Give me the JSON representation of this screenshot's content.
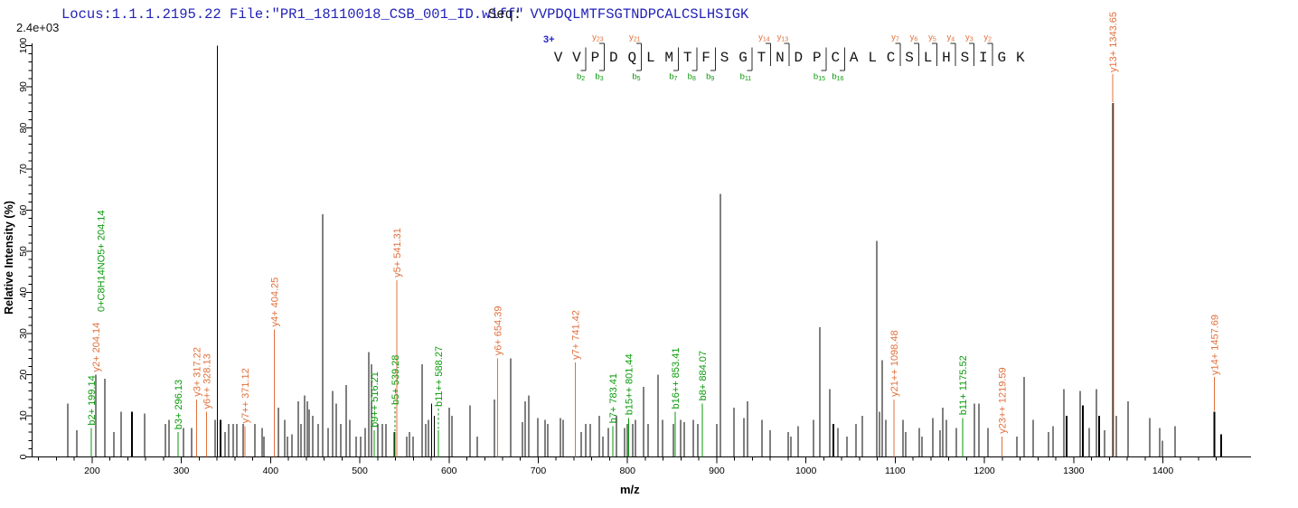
{
  "header": {
    "locus_line": "Locus:1.1.1.2195.22 File:\"PR1_18110018_CSB_001_ID.wiff\"",
    "seq_prefix": "Seq: ",
    "sequence": "VVPDQLMTFSGTNDPCALCSLHSIGK",
    "max_intensity_label": "2.4e+03"
  },
  "colors": {
    "background": "#ffffff",
    "header_blue": "#2222b8",
    "charge_blue": "#2222cc",
    "y_ion_orange": "#e0703c",
    "b_ion_green": "#0a9a0a",
    "peak_black": "#000000",
    "axis_black": "#000000",
    "residue_black": "#141414"
  },
  "peptide_ladder": {
    "charge_label": "3+",
    "residues": [
      "V",
      "V",
      "P",
      "D",
      "Q",
      "L",
      "M",
      "T",
      "F",
      "S",
      "G",
      "T",
      "N",
      "D",
      "P",
      "C",
      "A",
      "L",
      "C",
      "S",
      "L",
      "H",
      "S",
      "I",
      "G",
      "K"
    ],
    "b_ions": [
      2,
      3,
      5,
      7,
      8,
      9,
      11,
      15,
      16
    ],
    "y_ions": [
      23,
      21,
      14,
      13,
      7,
      6,
      5,
      4,
      3,
      2
    ]
  },
  "chart_data": {
    "type": "bar",
    "subtype": "msms-stick-spectrum",
    "title": "",
    "xlabel": "m/z",
    "ylabel": "Relative Intensity (%)",
    "base_peak_intensity": "2.4e+03",
    "x_axis": {
      "min": 130,
      "max": 1500,
      "major_ticks": [
        200,
        300,
        400,
        500,
        600,
        700,
        800,
        900,
        1000,
        1100,
        1200,
        1300,
        1400
      ],
      "minor_step": 20
    },
    "y_axis": {
      "min": 0,
      "max": 100,
      "major_ticks": [
        0,
        10,
        20,
        30,
        40,
        50,
        60,
        70,
        80,
        90,
        100
      ],
      "minor_step": 2
    },
    "legend": "color-coded: black=unassigned, orange=y ions, green=b ions",
    "peaks": [
      [
        172.7,
        13
      ],
      [
        182.8,
        6.5
      ],
      [
        199.14,
        7,
        2
      ],
      [
        204.14,
        20
      ],
      [
        214.2,
        19
      ],
      [
        224.4,
        6
      ],
      [
        232.5,
        11
      ],
      [
        244.6,
        11,
        0,
        2
      ],
      [
        258.8,
        10.5
      ],
      [
        282.1,
        8
      ],
      [
        286.2,
        9
      ],
      [
        296.13,
        6,
        2
      ],
      [
        302.4,
        7
      ],
      [
        311.5,
        7
      ],
      [
        317.22,
        14,
        1
      ],
      [
        328.13,
        11,
        1
      ],
      [
        337.9,
        9
      ],
      [
        340.4,
        100
      ],
      [
        344,
        9,
        0,
        2
      ],
      [
        349,
        6
      ],
      [
        353,
        8
      ],
      [
        358.1,
        8
      ],
      [
        362.1,
        8
      ],
      [
        369.2,
        8
      ],
      [
        371.12,
        7.5,
        1
      ],
      [
        382.4,
        8
      ],
      [
        390.5,
        7
      ],
      [
        392.5,
        5
      ],
      [
        404.25,
        31,
        1
      ],
      [
        408.7,
        12
      ],
      [
        415.8,
        9
      ],
      [
        418.8,
        5
      ],
      [
        423.9,
        5.5
      ],
      [
        431,
        13.5
      ],
      [
        434,
        8
      ],
      [
        438.2,
        15
      ],
      [
        441.2,
        13.5
      ],
      [
        443.2,
        11.5
      ],
      [
        447.2,
        10
      ],
      [
        453.3,
        8
      ],
      [
        458.3,
        59
      ],
      [
        464.4,
        7
      ],
      [
        469.5,
        16
      ],
      [
        473.5,
        13
      ],
      [
        478.6,
        8
      ],
      [
        484.7,
        17.5
      ],
      [
        488.7,
        9
      ],
      [
        495.8,
        5
      ],
      [
        500.9,
        5
      ],
      [
        506,
        7
      ],
      [
        510,
        25.5
      ],
      [
        513.1,
        22.5
      ],
      [
        516.21,
        6.5,
        2
      ],
      [
        520.2,
        8
      ],
      [
        525.2,
        8
      ],
      [
        529.3,
        8
      ],
      [
        538.4,
        6
      ],
      [
        539.28,
        6,
        2
      ],
      [
        541.31,
        43,
        1
      ],
      [
        552.6,
        5
      ],
      [
        555.6,
        6
      ],
      [
        559.7,
        5
      ],
      [
        569.8,
        22.5
      ],
      [
        573.9,
        8
      ],
      [
        577,
        9
      ],
      [
        580.5,
        13
      ],
      [
        583.5,
        10
      ],
      [
        588.27,
        6.5,
        2
      ],
      [
        600.3,
        12
      ],
      [
        603.3,
        10
      ],
      [
        623.6,
        12.5
      ],
      [
        631.7,
        5
      ],
      [
        651,
        14
      ],
      [
        654.39,
        24,
        1
      ],
      [
        669.2,
        24
      ],
      [
        682.4,
        8.5
      ],
      [
        685.4,
        13.5
      ],
      [
        689.5,
        15
      ],
      [
        699.6,
        9.5
      ],
      [
        707.7,
        9
      ],
      [
        710.8,
        8
      ],
      [
        725,
        9.5
      ],
      [
        728,
        9
      ],
      [
        741.42,
        23,
        1
      ],
      [
        748.3,
        6
      ],
      [
        753.4,
        8
      ],
      [
        758.4,
        8
      ],
      [
        768.6,
        10
      ],
      [
        772.6,
        5
      ],
      [
        778.7,
        7
      ],
      [
        783.41,
        7.5,
        2
      ],
      [
        787.8,
        10
      ],
      [
        796.9,
        7
      ],
      [
        799.9,
        8
      ],
      [
        801.44,
        9.5,
        2
      ],
      [
        806,
        8
      ],
      [
        809,
        9
      ],
      [
        818.2,
        17
      ],
      [
        823.2,
        8
      ],
      [
        834.4,
        20
      ],
      [
        839.4,
        9
      ],
      [
        851.6,
        8
      ],
      [
        853.41,
        11,
        2
      ],
      [
        859.7,
        9
      ],
      [
        863.7,
        8.5
      ],
      [
        873.9,
        9
      ],
      [
        878.9,
        8
      ],
      [
        884.07,
        13,
        2
      ],
      [
        900.2,
        8
      ],
      [
        904.2,
        64
      ],
      [
        919.4,
        12
      ],
      [
        930.6,
        9.5
      ],
      [
        934.6,
        13.5
      ],
      [
        950.8,
        9
      ],
      [
        959.9,
        6.5
      ],
      [
        980.2,
        6
      ],
      [
        983.2,
        5
      ],
      [
        991.3,
        7.5
      ],
      [
        1008.6,
        9
      ],
      [
        1015.7,
        31.5
      ],
      [
        1026.8,
        16.5
      ],
      [
        1030.9,
        8,
        0,
        2
      ],
      [
        1035.9,
        7
      ],
      [
        1046.1,
        5
      ],
      [
        1056.2,
        8
      ],
      [
        1063.3,
        10
      ],
      [
        1079.5,
        52.5
      ],
      [
        1082.6,
        11
      ],
      [
        1085.6,
        23.5
      ],
      [
        1089.7,
        9
      ],
      [
        1098.48,
        14,
        1
      ],
      [
        1109,
        9
      ],
      [
        1112,
        6
      ],
      [
        1127.2,
        7
      ],
      [
        1130.2,
        5
      ],
      [
        1142.4,
        9.5
      ],
      [
        1150.5,
        6.5
      ],
      [
        1153.5,
        12
      ],
      [
        1157.6,
        9
      ],
      [
        1168.7,
        7
      ],
      [
        1175.52,
        9.5,
        2
      ],
      [
        1189,
        13
      ],
      [
        1194,
        13
      ],
      [
        1204.2,
        7
      ],
      [
        1219.59,
        5,
        1
      ],
      [
        1236.6,
        5
      ],
      [
        1244.7,
        19.5
      ],
      [
        1254.8,
        9
      ],
      [
        1272,
        6
      ],
      [
        1277.1,
        7.5
      ],
      [
        1289.2,
        16.5
      ],
      [
        1292.3,
        10,
        0,
        2
      ],
      [
        1307.5,
        16
      ],
      [
        1310.5,
        12.5,
        0,
        2
      ],
      [
        1317.6,
        7
      ],
      [
        1325.7,
        16.5
      ],
      [
        1328.7,
        10,
        0,
        2
      ],
      [
        1334.8,
        6.5
      ],
      [
        1343.65,
        86
      ],
      [
        1344.7,
        86,
        1
      ],
      [
        1347.9,
        10
      ],
      [
        1361.1,
        13.5
      ],
      [
        1385.4,
        9.5
      ],
      [
        1396.6,
        7
      ],
      [
        1399.6,
        4
      ],
      [
        1413.8,
        7.5
      ],
      [
        1457.69,
        11,
        0,
        2
      ],
      [
        1465.5,
        5.5,
        0,
        2
      ]
    ],
    "annotations": [
      {
        "text": "b2+ 199.14",
        "mz": 199.14,
        "ion": "b"
      },
      {
        "text": "y2+ 204.14",
        "mz": 204.14,
        "ion": "y"
      },
      {
        "text": "0+C8H14NO5+ 204.14",
        "mz": 204.14,
        "ion": "b",
        "dx": 5.5,
        "elev": 345,
        "conn": false
      },
      {
        "text": "b3+ 296.13",
        "mz": 296.13,
        "ion": "b"
      },
      {
        "text": "y3+ 317.22",
        "mz": 317.22,
        "ion": "y"
      },
      {
        "text": "y6++ 328.13",
        "mz": 328.13,
        "ion": "y"
      },
      {
        "text": "y7++ 371.12",
        "mz": 371.12,
        "ion": "y"
      },
      {
        "text": "y4+ 404.25",
        "mz": 404.25,
        "ion": "y"
      },
      {
        "text": "b9++ 516.21",
        "mz": 516.21,
        "ion": "b"
      },
      {
        "text": "b5+ 539.28",
        "mz": 539.28,
        "ion": "b",
        "elev": 448,
        "dash": true
      },
      {
        "text": "y5+ 541.31",
        "mz": 541.31,
        "ion": "y"
      },
      {
        "text": "b11++ 588.27",
        "mz": 588.27,
        "ion": "b",
        "elev": 450,
        "dash": true
      },
      {
        "text": "y6+ 654.39",
        "mz": 654.39,
        "ion": "y"
      },
      {
        "text": "y7+ 741.42",
        "mz": 741.42,
        "ion": "y"
      },
      {
        "text": "b7+ 783.41",
        "mz": 783.41,
        "ion": "b"
      },
      {
        "text": "b15++ 801.44",
        "mz": 801.44,
        "ion": "b"
      },
      {
        "text": "b16++ 853.41",
        "mz": 853.41,
        "ion": "b"
      },
      {
        "text": "b8+ 884.07",
        "mz": 884.07,
        "ion": "b"
      },
      {
        "text": "y21++ 1098.48",
        "mz": 1098.48,
        "ion": "y"
      },
      {
        "text": "b11+ 1175.52",
        "mz": 1175.52,
        "ion": "b"
      },
      {
        "text": "y23++ 1219.59",
        "mz": 1219.59,
        "ion": "y"
      },
      {
        "text": "y13+ 1343.65",
        "mz": 1343.65,
        "ion": "y",
        "elev": 80
      },
      {
        "text": "y14+ 1457.69",
        "mz": 1457.69,
        "ion": "y",
        "elev": 415
      }
    ]
  }
}
